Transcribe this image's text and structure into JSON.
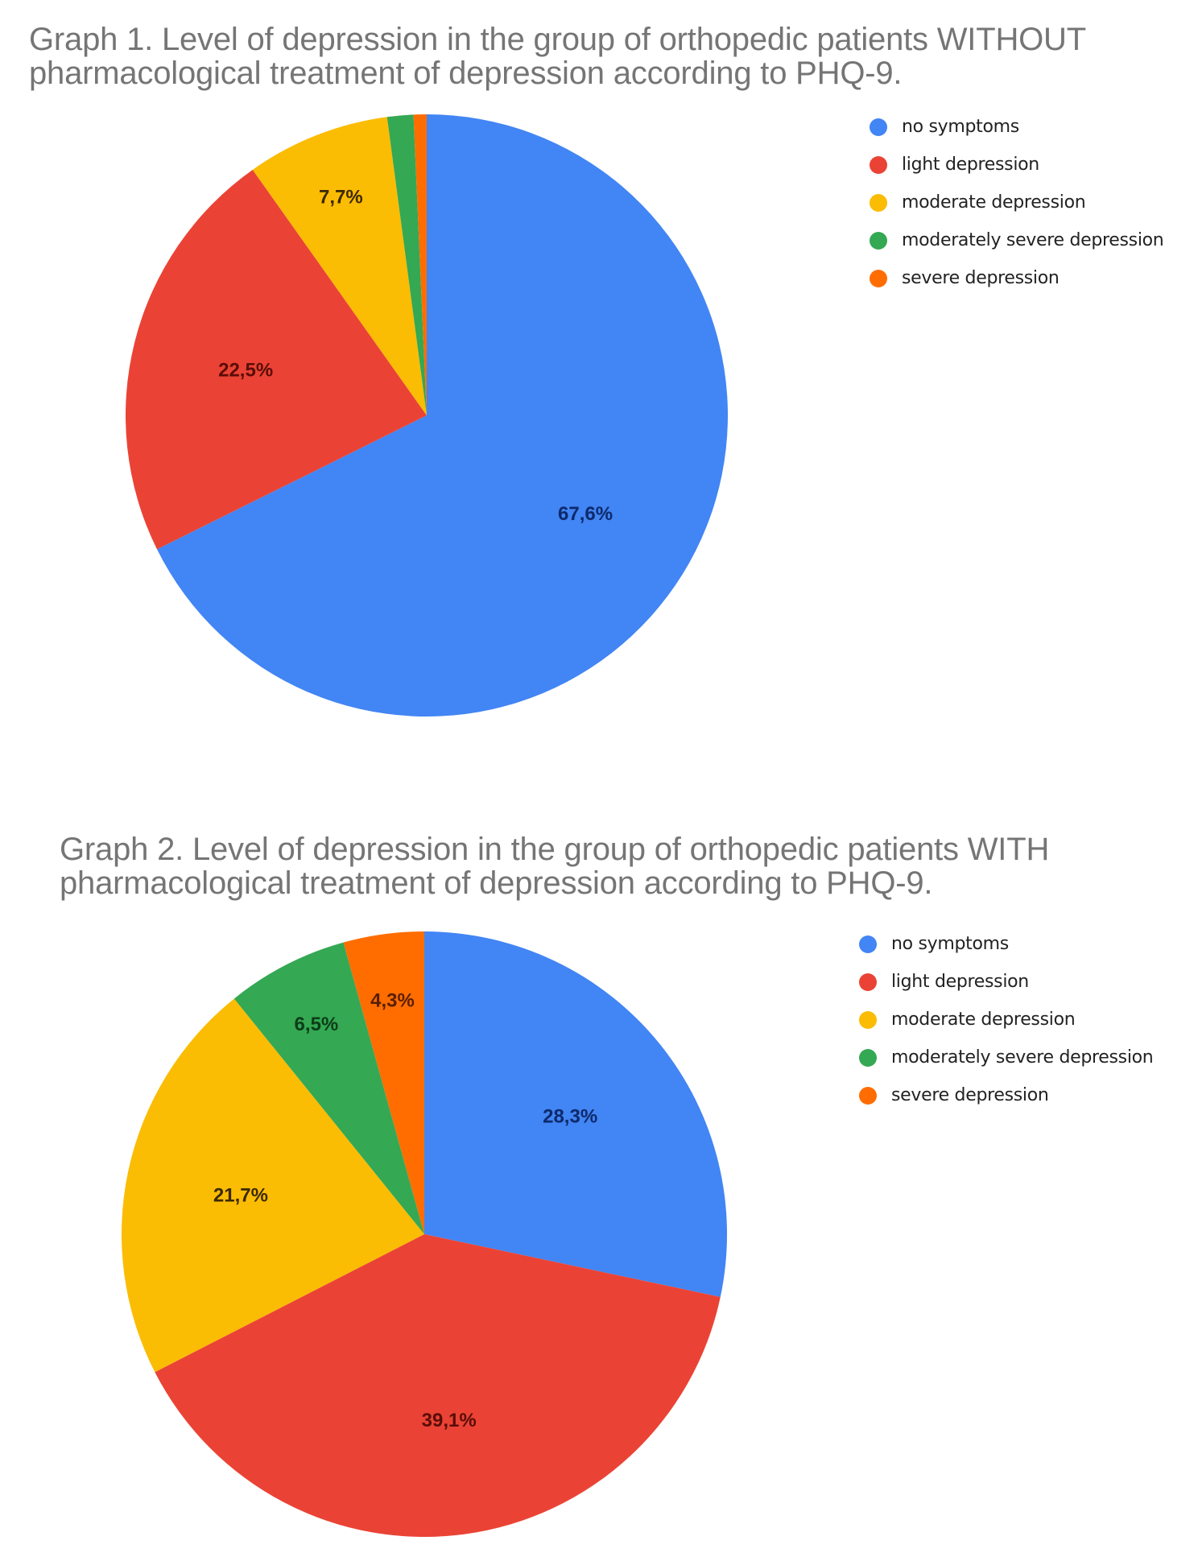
{
  "colors": {
    "no_symptoms": "#4285F4",
    "light_depression": "#EA4335",
    "moderate_depression": "#FBBC04",
    "moderately_severe_depression": "#34A853",
    "severe_depression": "#FF6D01"
  },
  "chart_data": [
    {
      "type": "pie",
      "title": "Graph 1. Level of depression in the group of orthopedic patients WITHOUT pharmacological treatment of depression according to PHQ-9.",
      "title_lines": [
        "Graph 1. Level of depression in the group of orthopedic patients WITHOUT",
        "pharmacological treatment of depression according to PHQ-9."
      ],
      "categories": [
        "no symptoms",
        "light depression",
        "moderate depression",
        "moderately severe depression",
        "severe depression"
      ],
      "values": [
        67.6,
        22.5,
        7.7,
        1.4,
        0.7
      ],
      "estimated": [
        false,
        false,
        false,
        true,
        true
      ],
      "labels": [
        "67,6%",
        "22,5%",
        "7,7%",
        "",
        ""
      ],
      "unit": "%",
      "start_angle_deg": 0,
      "direction": "clockwise",
      "legend_position": "right"
    },
    {
      "type": "pie",
      "title": "Graph 2. Level of depression in the group of orthopedic patients WITH pharmacological treatment of depression according to PHQ-9.",
      "title_lines": [
        "Graph 2. Level of depression in the group of orthopedic patients WITH",
        "pharmacological treatment of depression according to PHQ-9."
      ],
      "categories": [
        "no symptoms",
        "light depression",
        "moderate depression",
        "moderately severe depression",
        "severe depression"
      ],
      "values": [
        28.3,
        39.1,
        21.7,
        6.5,
        4.3
      ],
      "estimated": [
        false,
        false,
        false,
        false,
        false
      ],
      "labels": [
        "28,3%",
        "39,1%",
        "21,7%",
        "6,5%",
        "4,3%"
      ],
      "unit": "%",
      "start_angle_deg": 0,
      "direction": "clockwise",
      "legend_position": "right"
    }
  ],
  "charts": [
    {
      "title_line1": "Graph 1. Level of depression in the group of orthopedic patients WITHOUT",
      "title_line2": "pharmacological treatment of depression according to PHQ-9.",
      "legend": [
        {
          "label": "no symptoms",
          "color": "#4285F4"
        },
        {
          "label": "light depression",
          "color": "#EA4335"
        },
        {
          "label": "moderate depression",
          "color": "#FBBC04"
        },
        {
          "label": "moderately severe depression",
          "color": "#34A853"
        },
        {
          "label": "severe depression",
          "color": "#FF6D01"
        }
      ]
    },
    {
      "title_line1": "Graph 2. Level of depression in the group of orthopedic patients WITH",
      "title_line2": "pharmacological treatment of depression according to PHQ-9.",
      "legend": [
        {
          "label": "no symptoms",
          "color": "#4285F4"
        },
        {
          "label": "light depression",
          "color": "#EA4335"
        },
        {
          "label": "moderate depression",
          "color": "#FBBC04"
        },
        {
          "label": "moderately severe depression",
          "color": "#34A853"
        },
        {
          "label": "severe depression",
          "color": "#FF6D01"
        }
      ]
    }
  ]
}
